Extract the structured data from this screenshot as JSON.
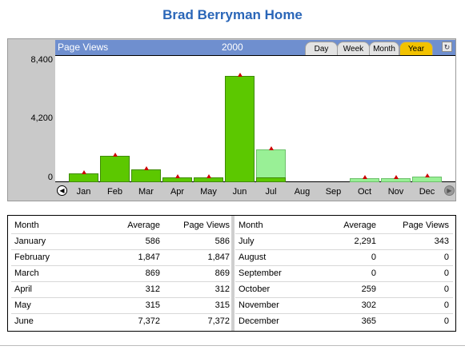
{
  "page": {
    "title": "Brad Berryman Home"
  },
  "chart_header": {
    "label": "Page Views",
    "year": "2000"
  },
  "tabs": [
    {
      "label": "Day",
      "active": false
    },
    {
      "label": "Week",
      "active": false
    },
    {
      "label": "Month",
      "active": false
    },
    {
      "label": "Year",
      "active": true
    }
  ],
  "colors": {
    "header_bg": "#6f8fcf",
    "bar_pageviews": "#5cc800",
    "bar_partial": "#99f096",
    "avg_marker": "#cc0000",
    "active_tab": "#f2c200",
    "title": "#2a66b8"
  },
  "icons": {
    "prev": "prev-arrow-icon",
    "next": "next-arrow-icon",
    "refresh": "refresh-icon"
  },
  "chart_data": {
    "type": "bar",
    "categories": [
      "Jan",
      "Feb",
      "Mar",
      "Apr",
      "May",
      "Jun",
      "Jul",
      "Aug",
      "Sep",
      "Oct",
      "Nov",
      "Dec"
    ],
    "series": [
      {
        "name": "Page Views",
        "values": [
          586,
          1847,
          869,
          312,
          315,
          7372,
          343,
          0,
          0,
          0,
          0,
          0
        ]
      },
      {
        "name": "Average",
        "values": [
          586,
          1847,
          869,
          312,
          315,
          7372,
          2291,
          0,
          0,
          259,
          302,
          365
        ]
      }
    ],
    "ylim": [
      0,
      8400
    ],
    "yticks": [
      "8,400",
      "4,200",
      "0"
    ],
    "ytick_values": [
      8400,
      4200,
      0
    ]
  },
  "table": {
    "headers": {
      "month": "Month",
      "average": "Average",
      "pageviews": "Page Views"
    },
    "left": [
      {
        "month": "January",
        "average": "586",
        "pageviews": "586"
      },
      {
        "month": "February",
        "average": "1,847",
        "pageviews": "1,847"
      },
      {
        "month": "March",
        "average": "869",
        "pageviews": "869"
      },
      {
        "month": "April",
        "average": "312",
        "pageviews": "312"
      },
      {
        "month": "May",
        "average": "315",
        "pageviews": "315"
      },
      {
        "month": "June",
        "average": "7,372",
        "pageviews": "7,372"
      }
    ],
    "right": [
      {
        "month": "July",
        "average": "2,291",
        "pageviews": "343"
      },
      {
        "month": "August",
        "average": "0",
        "pageviews": "0"
      },
      {
        "month": "September",
        "average": "0",
        "pageviews": "0"
      },
      {
        "month": "October",
        "average": "259",
        "pageviews": "0"
      },
      {
        "month": "November",
        "average": "302",
        "pageviews": "0"
      },
      {
        "month": "December",
        "average": "365",
        "pageviews": "0"
      }
    ]
  }
}
